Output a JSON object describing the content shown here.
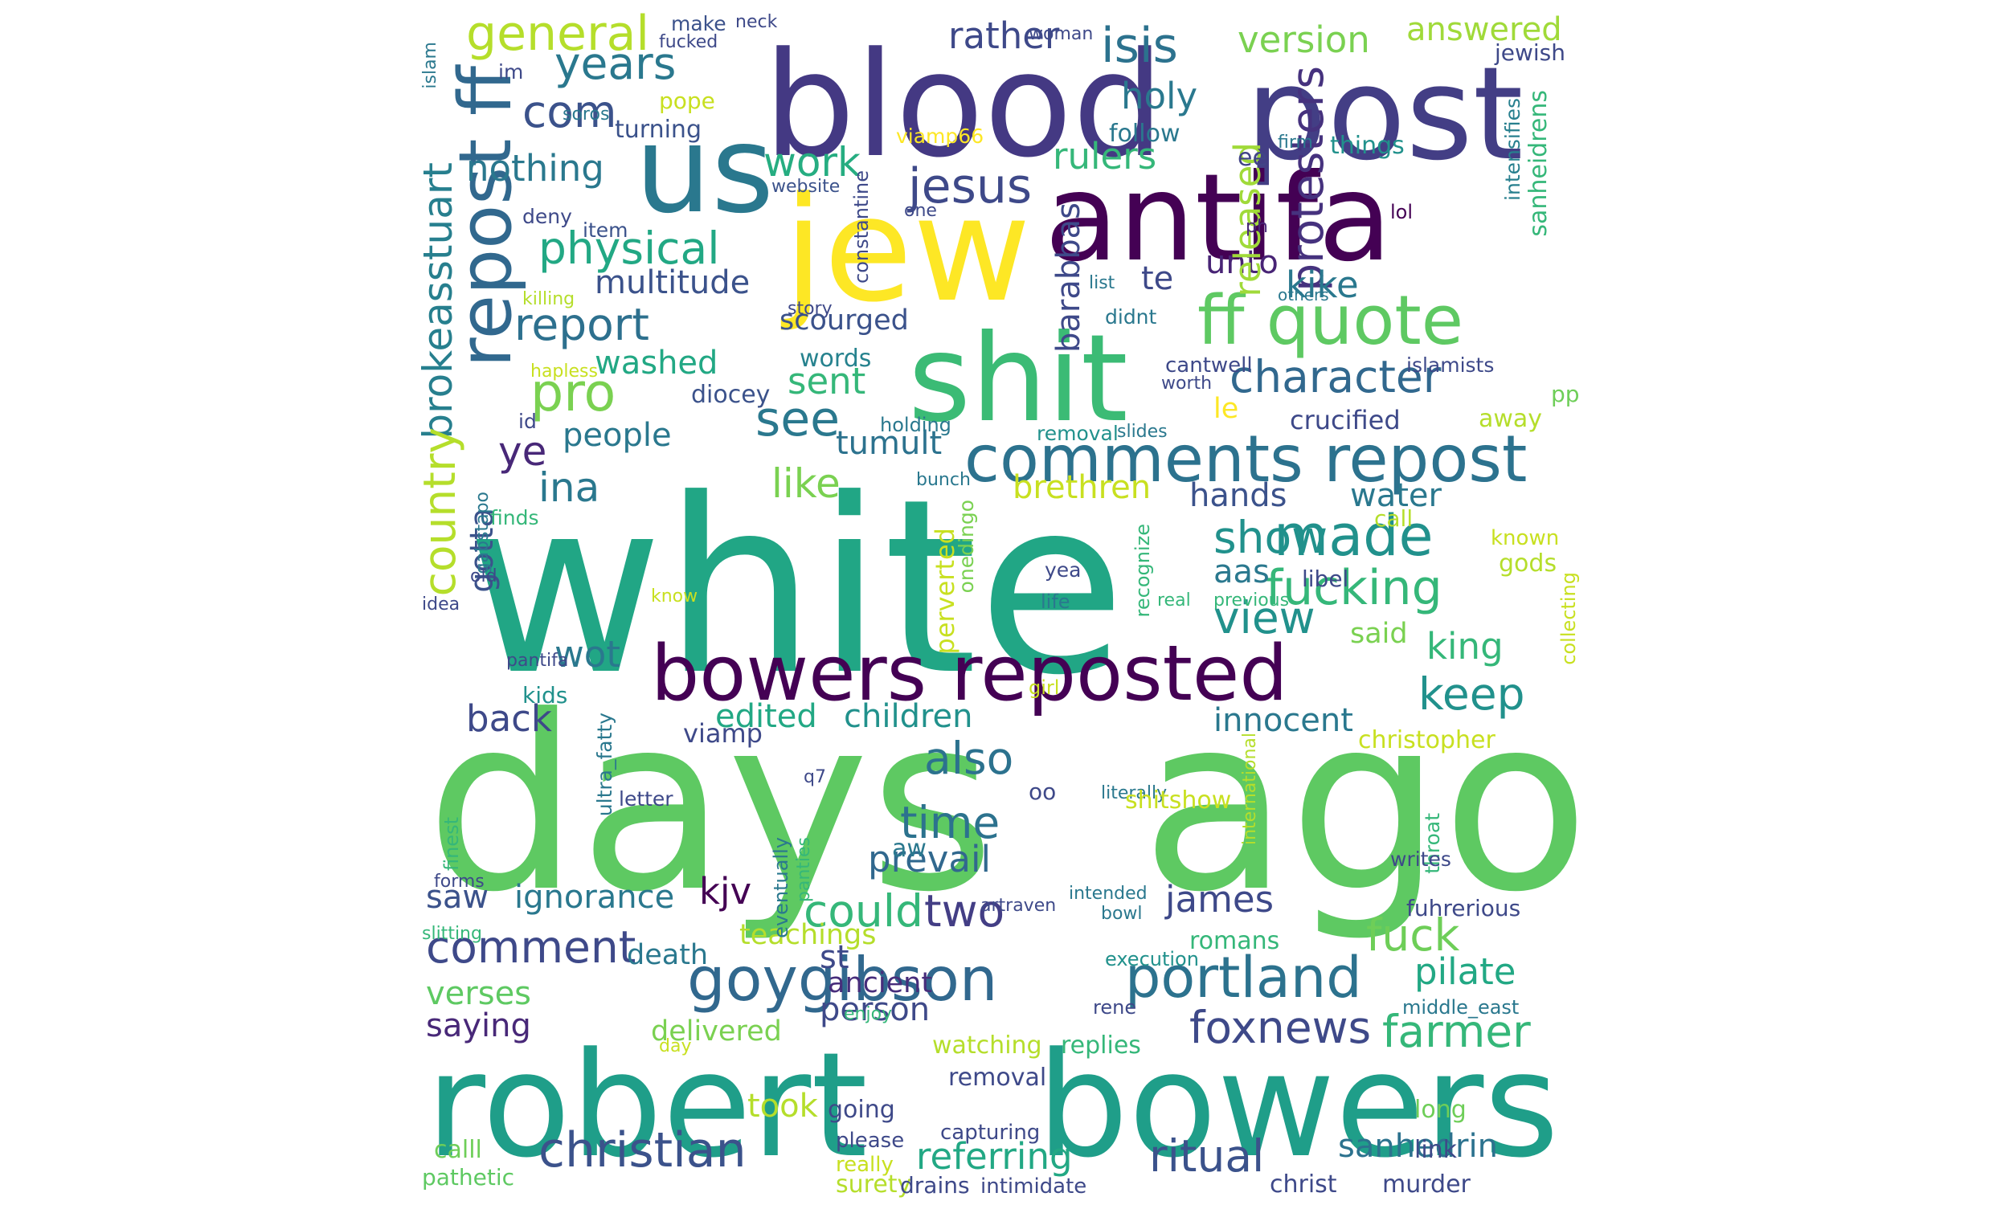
{
  "wordcloud": {
    "words": [
      {
        "text": "white",
        "color": "#21a685"
      },
      {
        "text": "days",
        "color": "#5ec962"
      },
      {
        "text": "ago",
        "color": "#5ec962"
      },
      {
        "text": "robert",
        "color": "#1f9e89"
      },
      {
        "text": "bowers",
        "color": "#1f9e89"
      },
      {
        "text": "blood",
        "color": "#443983"
      },
      {
        "text": "post",
        "color": "#433e85"
      },
      {
        "text": "jew",
        "color": "#fde725"
      },
      {
        "text": "antifa",
        "color": "#440154"
      },
      {
        "text": "us",
        "color": "#2a788e"
      },
      {
        "text": "shit",
        "color": "#3bbb75"
      },
      {
        "text": "bowers reposted",
        "color": "#440154"
      },
      {
        "text": "comments repost",
        "color": "#2c728e"
      },
      {
        "text": "ff quote",
        "color": "#5ec962"
      },
      {
        "text": "repost ff",
        "color": "#31688e"
      },
      {
        "text": "goygibson",
        "color": "#31688e"
      },
      {
        "text": "portland",
        "color": "#2c728e"
      },
      {
        "text": "christian",
        "color": "#3b528b"
      },
      {
        "text": "fucking",
        "color": "#35b779"
      },
      {
        "text": "made",
        "color": "#21918c"
      },
      {
        "text": "general",
        "color": "#b5de2b"
      },
      {
        "text": "isis",
        "color": "#2c728e"
      },
      {
        "text": "version",
        "color": "#7ad151"
      },
      {
        "text": "answered",
        "color": "#a0da39"
      },
      {
        "text": "rather",
        "color": "#3e4989"
      },
      {
        "text": "years",
        "color": "#2a788e"
      },
      {
        "text": "com",
        "color": "#3b528b"
      },
      {
        "text": "holy",
        "color": "#2a788e"
      },
      {
        "text": "nothing",
        "color": "#2a788e"
      },
      {
        "text": "rulers",
        "color": "#35b779"
      },
      {
        "text": "work",
        "color": "#26ad81"
      },
      {
        "text": "jesus",
        "color": "#3e4989"
      },
      {
        "text": "physical",
        "color": "#22a884"
      },
      {
        "text": "protesters",
        "color": "#46327e"
      },
      {
        "text": "multitude",
        "color": "#3b528b"
      },
      {
        "text": "te",
        "color": "#3e4989"
      },
      {
        "text": "unto",
        "color": "#482475"
      },
      {
        "text": "kike",
        "color": "#2a788e"
      },
      {
        "text": "released",
        "color": "#a0da39"
      },
      {
        "text": "report",
        "color": "#2d708e"
      },
      {
        "text": "pro",
        "color": "#7ad151"
      },
      {
        "text": "washed",
        "color": "#22a884"
      },
      {
        "text": "sent",
        "color": "#35b779"
      },
      {
        "text": "character",
        "color": "#31688e"
      },
      {
        "text": "see",
        "color": "#2a788e"
      },
      {
        "text": "brokeasstuart",
        "color": "#277f8e"
      },
      {
        "text": "country",
        "color": "#b5de2b"
      },
      {
        "text": "gotta",
        "color": "#3b528b"
      },
      {
        "text": "ye",
        "color": "#482878"
      },
      {
        "text": "people",
        "color": "#2a788e"
      },
      {
        "text": "tumult",
        "color": "#2c728e"
      },
      {
        "text": "like",
        "color": "#7ad151"
      },
      {
        "text": "ina",
        "color": "#2a788e"
      },
      {
        "text": "brethren",
        "color": "#c8e020"
      },
      {
        "text": "hands",
        "color": "#3b528b"
      },
      {
        "text": "water",
        "color": "#2a788e"
      },
      {
        "text": "show",
        "color": "#21918c"
      },
      {
        "text": "view",
        "color": "#21918c"
      },
      {
        "text": "aas",
        "color": "#2a788e"
      },
      {
        "text": "said",
        "color": "#7ad151"
      },
      {
        "text": "king",
        "color": "#35b779"
      },
      {
        "text": "keep",
        "color": "#21918c"
      },
      {
        "text": "wot",
        "color": "#2a788e"
      },
      {
        "text": "back",
        "color": "#3e4989"
      },
      {
        "text": "edited",
        "color": "#22a884"
      },
      {
        "text": "children",
        "color": "#21918c"
      },
      {
        "text": "innocent",
        "color": "#2a788e"
      },
      {
        "text": "also",
        "color": "#2c728e"
      },
      {
        "text": "time",
        "color": "#2c728e"
      },
      {
        "text": "prevail",
        "color": "#31688e"
      },
      {
        "text": "could",
        "color": "#35b779"
      },
      {
        "text": "two",
        "color": "#433e85"
      },
      {
        "text": "james",
        "color": "#3e4989"
      },
      {
        "text": "kjv",
        "color": "#440154"
      },
      {
        "text": "saw",
        "color": "#3b528b"
      },
      {
        "text": "ignorance",
        "color": "#2a788e"
      },
      {
        "text": "comment",
        "color": "#3e4989"
      },
      {
        "text": "verses",
        "color": "#5ec962"
      },
      {
        "text": "saying",
        "color": "#482878"
      },
      {
        "text": "death",
        "color": "#2a788e"
      },
      {
        "text": "st",
        "color": "#3e4989"
      },
      {
        "text": "teachings",
        "color": "#b5de2b"
      },
      {
        "text": "ancient",
        "color": "#472d7b"
      },
      {
        "text": "person",
        "color": "#3e4989"
      },
      {
        "text": "delivered",
        "color": "#7ad151"
      },
      {
        "text": "fuck",
        "color": "#6ece58"
      },
      {
        "text": "pilate",
        "color": "#22a884"
      },
      {
        "text": "foxnews",
        "color": "#3e4989"
      },
      {
        "text": "farmer",
        "color": "#35b779"
      },
      {
        "text": "took",
        "color": "#b5de2b"
      },
      {
        "text": "referring",
        "color": "#22a884"
      },
      {
        "text": "ritual",
        "color": "#3b528b"
      },
      {
        "text": "sanhedrin",
        "color": "#2c728e"
      },
      {
        "text": "calll",
        "color": "#6ece58"
      },
      {
        "text": "pathetic",
        "color": "#5ec962"
      },
      {
        "text": "scourged",
        "color": "#3b528b"
      },
      {
        "text": "barabbas",
        "color": "#3e4989"
      },
      {
        "text": "words",
        "color": "#26828e"
      },
      {
        "text": "diocey",
        "color": "#3b528b"
      },
      {
        "text": "crucified",
        "color": "#3e4989"
      },
      {
        "text": "le",
        "color": "#fde725"
      },
      {
        "text": "viamp66",
        "color": "#fde725"
      },
      {
        "text": "follow",
        "color": "#2a788e"
      },
      {
        "text": "ee",
        "color": "#414487"
      },
      {
        "text": "things",
        "color": "#21918c"
      },
      {
        "text": "sanheidrens",
        "color": "#35b779"
      },
      {
        "text": "intensifies",
        "color": "#277f8e"
      },
      {
        "text": "jewish",
        "color": "#3e4989"
      },
      {
        "text": "woman",
        "color": "#3e4989"
      },
      {
        "text": "make",
        "color": "#3b528b"
      },
      {
        "text": "neck",
        "color": "#3e4989"
      },
      {
        "text": "fucked",
        "color": "#3e4989"
      },
      {
        "text": "im",
        "color": "#3e4989"
      },
      {
        "text": "islam",
        "color": "#2a788e"
      },
      {
        "text": "soros",
        "color": "#2a788e"
      },
      {
        "text": "turning",
        "color": "#3b528b"
      },
      {
        "text": "pope",
        "color": "#c8e020"
      },
      {
        "text": "website",
        "color": "#3b528b"
      },
      {
        "text": "constantine",
        "color": "#3e4989"
      },
      {
        "text": "one",
        "color": "#3e4989"
      },
      {
        "text": "deny",
        "color": "#3e4989"
      },
      {
        "text": "item",
        "color": "#3b528b"
      },
      {
        "text": "killing",
        "color": "#b5de2b"
      },
      {
        "text": "story",
        "color": "#3e4989"
      },
      {
        "text": "list",
        "color": "#2a788e"
      },
      {
        "text": "didnt",
        "color": "#2a788e"
      },
      {
        "text": "others",
        "color": "#2a788e"
      },
      {
        "text": "islamists",
        "color": "#3e4989"
      },
      {
        "text": "ph",
        "color": "#482878"
      },
      {
        "text": "lol",
        "color": "#440154"
      },
      {
        "text": "firm",
        "color": "#2a788e"
      },
      {
        "text": "hapless",
        "color": "#c8e020"
      },
      {
        "text": "cantwell",
        "color": "#3e4989"
      },
      {
        "text": "worth",
        "color": "#3e4989"
      },
      {
        "text": "pp",
        "color": "#6ece58"
      },
      {
        "text": "away",
        "color": "#b5de2b"
      },
      {
        "text": "id",
        "color": "#3e4989"
      },
      {
        "text": "holding",
        "color": "#2a788e"
      },
      {
        "text": "removal",
        "color": "#21918c"
      },
      {
        "text": "slides",
        "color": "#2a788e"
      },
      {
        "text": "bunch",
        "color": "#2a788e"
      },
      {
        "text": "perverted",
        "color": "#c8e020"
      },
      {
        "text": "onedingo",
        "color": "#7ad151"
      },
      {
        "text": "finds",
        "color": "#35b779"
      },
      {
        "text": "gabstapo",
        "color": "#2a788e"
      },
      {
        "text": "call",
        "color": "#b5de2b"
      },
      {
        "text": "recognize",
        "color": "#35b779"
      },
      {
        "text": "known",
        "color": "#c8e020"
      },
      {
        "text": "gods",
        "color": "#b5de2b"
      },
      {
        "text": "libel",
        "color": "#3e4989"
      },
      {
        "text": "real",
        "color": "#35b779"
      },
      {
        "text": "previous",
        "color": "#35b779"
      },
      {
        "text": "collecting",
        "color": "#c8e020"
      },
      {
        "text": "yea",
        "color": "#3e4989"
      },
      {
        "text": "life",
        "color": "#2a788e"
      },
      {
        "text": "know",
        "color": "#c8e020"
      },
      {
        "text": "old",
        "color": "#3e4989"
      },
      {
        "text": "idea",
        "color": "#3e4989"
      },
      {
        "text": "pantifa",
        "color": "#3e4989"
      },
      {
        "text": "kids",
        "color": "#21918c"
      },
      {
        "text": "girl",
        "color": "#c8e020"
      },
      {
        "text": "viamp",
        "color": "#3e4989"
      },
      {
        "text": "christopher",
        "color": "#c8e020"
      },
      {
        "text": "international",
        "color": "#b5de2b"
      },
      {
        "text": "oo",
        "color": "#3e4989"
      },
      {
        "text": "literally",
        "color": "#2a788e"
      },
      {
        "text": "shitshow",
        "color": "#c8e020"
      },
      {
        "text": "q7",
        "color": "#3e4989"
      },
      {
        "text": "letter",
        "color": "#3e4989"
      },
      {
        "text": "ultra_fatty",
        "color": "#2a788e"
      },
      {
        "text": "finest",
        "color": "#35b779"
      },
      {
        "text": "forms",
        "color": "#3e4989"
      },
      {
        "text": "slitting",
        "color": "#35b779"
      },
      {
        "text": "aw",
        "color": "#2a788e"
      },
      {
        "text": "eventually",
        "color": "#2a788e"
      },
      {
        "text": "panties",
        "color": "#35b779"
      },
      {
        "text": "artraven",
        "color": "#3e4989"
      },
      {
        "text": "intended",
        "color": "#2a788e"
      },
      {
        "text": "bowl",
        "color": "#2a788e"
      },
      {
        "text": "throat",
        "color": "#35b779"
      },
      {
        "text": "writes",
        "color": "#3e4989"
      },
      {
        "text": "fuhrerious",
        "color": "#3e4989"
      },
      {
        "text": "romans",
        "color": "#35b779"
      },
      {
        "text": "execution",
        "color": "#21918c"
      },
      {
        "text": "rene",
        "color": "#3e4989"
      },
      {
        "text": "middle_east",
        "color": "#2a788e"
      },
      {
        "text": "enjoy",
        "color": "#35b779"
      },
      {
        "text": "day",
        "color": "#c8e020"
      },
      {
        "text": "watching",
        "color": "#b5de2b"
      },
      {
        "text": "replies",
        "color": "#35b779"
      },
      {
        "text": "removal",
        "color": "#3e4989"
      },
      {
        "text": "going",
        "color": "#3e4989"
      },
      {
        "text": "please",
        "color": "#3e4989"
      },
      {
        "text": "really",
        "color": "#c8e020"
      },
      {
        "text": "capturing",
        "color": "#3e4989"
      },
      {
        "text": "long",
        "color": "#6ece58"
      },
      {
        "text": "link",
        "color": "#3e4989"
      },
      {
        "text": "surety",
        "color": "#b5de2b"
      },
      {
        "text": "drains",
        "color": "#3e4989"
      },
      {
        "text": "intimidate",
        "color": "#3e4989"
      },
      {
        "text": "christ",
        "color": "#3e4989"
      },
      {
        "text": "murder",
        "color": "#3e4989"
      }
    ]
  }
}
